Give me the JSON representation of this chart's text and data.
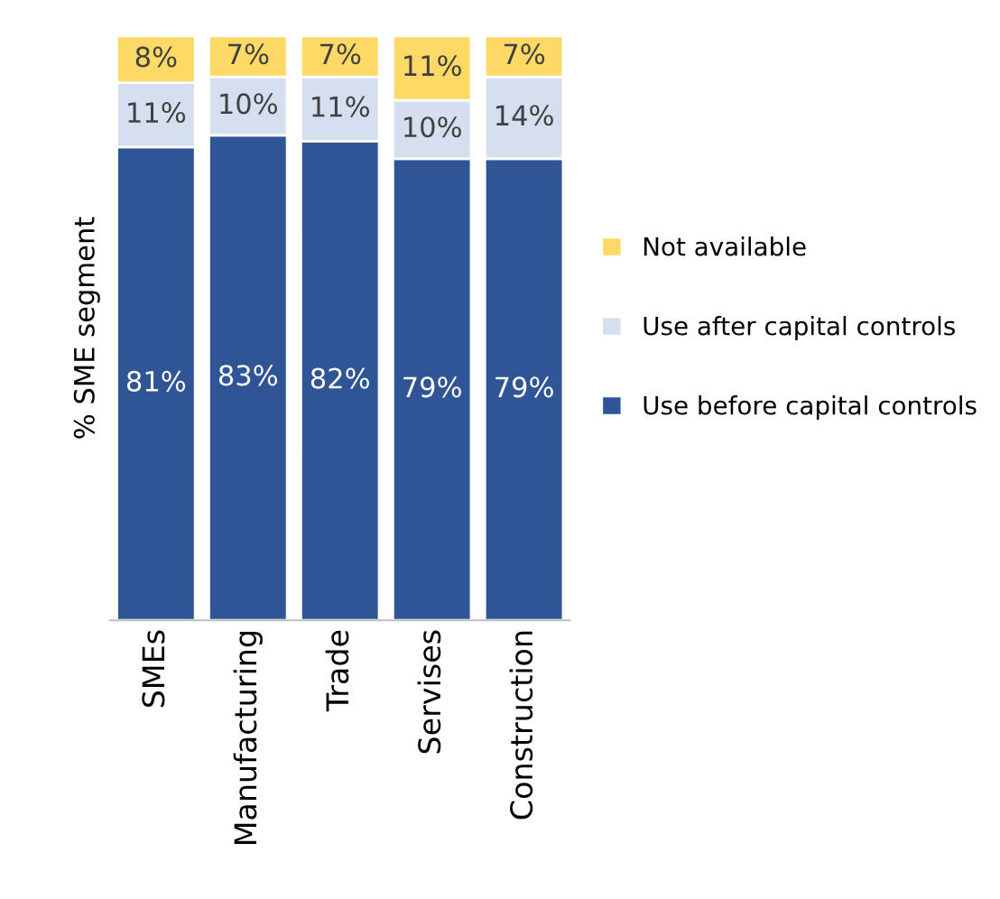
{
  "chart_data": {
    "type": "bar",
    "stacked": true,
    "ylabel": "% SME segment",
    "categories": [
      "SMEs",
      "Manufacturing",
      "Trade",
      "Servises",
      "Construction"
    ],
    "series": [
      {
        "name": "Use before capital controls",
        "color": "#2f5597",
        "values": [
          81,
          83,
          82,
          79,
          79
        ],
        "value_labels": [
          "81%",
          "83%",
          "82%",
          "79%",
          "79%"
        ]
      },
      {
        "name": "Use after capital controls",
        "color": "#d6dff0",
        "values": [
          11,
          10,
          11,
          10,
          14
        ],
        "value_labels": [
          "11%",
          "10%",
          "11%",
          "10%",
          "14%"
        ]
      },
      {
        "name": "Not available",
        "color": "#ffd966",
        "values": [
          8,
          7,
          7,
          11,
          7
        ],
        "value_labels": [
          "8%",
          "7%",
          "7%",
          "11%",
          "7%"
        ]
      }
    ],
    "legend": "right",
    "grid": false
  }
}
